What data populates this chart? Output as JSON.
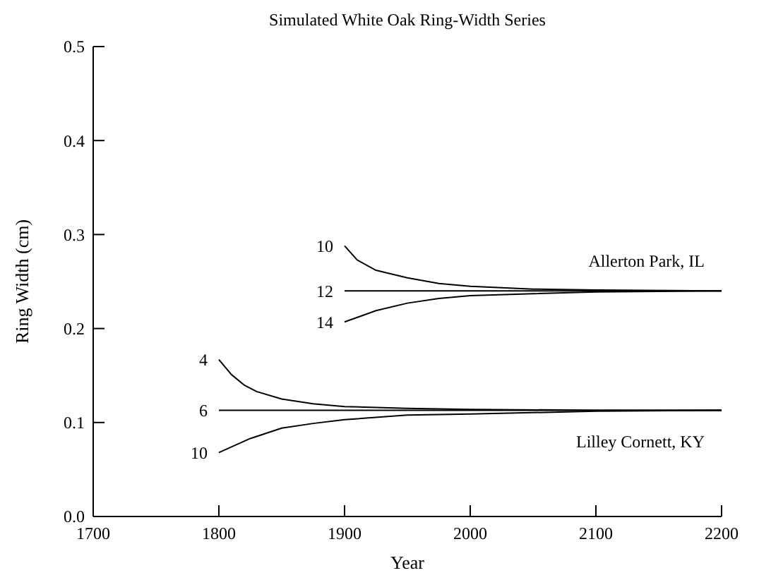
{
  "chart_data": {
    "type": "line",
    "title": "Simulated White Oak Ring-Width Series",
    "xlabel": "Year",
    "ylabel": "Ring Width (cm)",
    "xlim": [
      1700,
      2200
    ],
    "xticks": [
      1700,
      1800,
      1900,
      2000,
      2100,
      2200
    ],
    "ylim": [
      0,
      0.5
    ],
    "yticks": [
      {
        "value": 0,
        "label": "0.0"
      },
      0.1,
      0.2,
      0.3,
      0.4,
      0.5
    ],
    "grid": false,
    "marker": "none",
    "line_style": "solid",
    "annotations": [
      "Allerton Park, IL",
      "Lilley Cornett, KY"
    ],
    "series": [
      {
        "name": "4",
        "color": "#000000",
        "x": [
          1800,
          1810,
          1820,
          1830,
          1850,
          1875,
          1900,
          1950,
          2000,
          2100,
          2200
        ],
        "values": [
          0.167,
          0.151,
          0.14,
          0.133,
          0.125,
          0.12,
          0.117,
          0.115,
          0.114,
          0.113,
          0.113
        ]
      },
      {
        "name": "6",
        "color": "#000000",
        "x": [
          1800,
          2200
        ],
        "values": [
          0.113,
          0.113
        ]
      },
      {
        "name": "10",
        "color": "#000000",
        "x": [
          1800,
          1825,
          1850,
          1875,
          1900,
          1950,
          2000,
          2100,
          2200
        ],
        "values": [
          0.068,
          0.083,
          0.094,
          0.099,
          0.103,
          0.108,
          0.109,
          0.112,
          0.113
        ]
      },
      {
        "name": "10",
        "color": "#000000",
        "x": [
          1900,
          1910,
          1925,
          1950,
          1975,
          2000,
          2050,
          2100,
          2200
        ],
        "values": [
          0.288,
          0.273,
          0.262,
          0.254,
          0.248,
          0.245,
          0.242,
          0.241,
          0.24
        ]
      },
      {
        "name": "12",
        "color": "#000000",
        "x": [
          1900,
          2200
        ],
        "values": [
          0.24,
          0.24
        ]
      },
      {
        "name": "14",
        "color": "#000000",
        "x": [
          1900,
          1925,
          1950,
          1975,
          2000,
          2050,
          2100,
          2200
        ],
        "values": [
          0.207,
          0.219,
          0.227,
          0.232,
          0.235,
          0.237,
          0.239,
          0.24
        ]
      }
    ]
  }
}
